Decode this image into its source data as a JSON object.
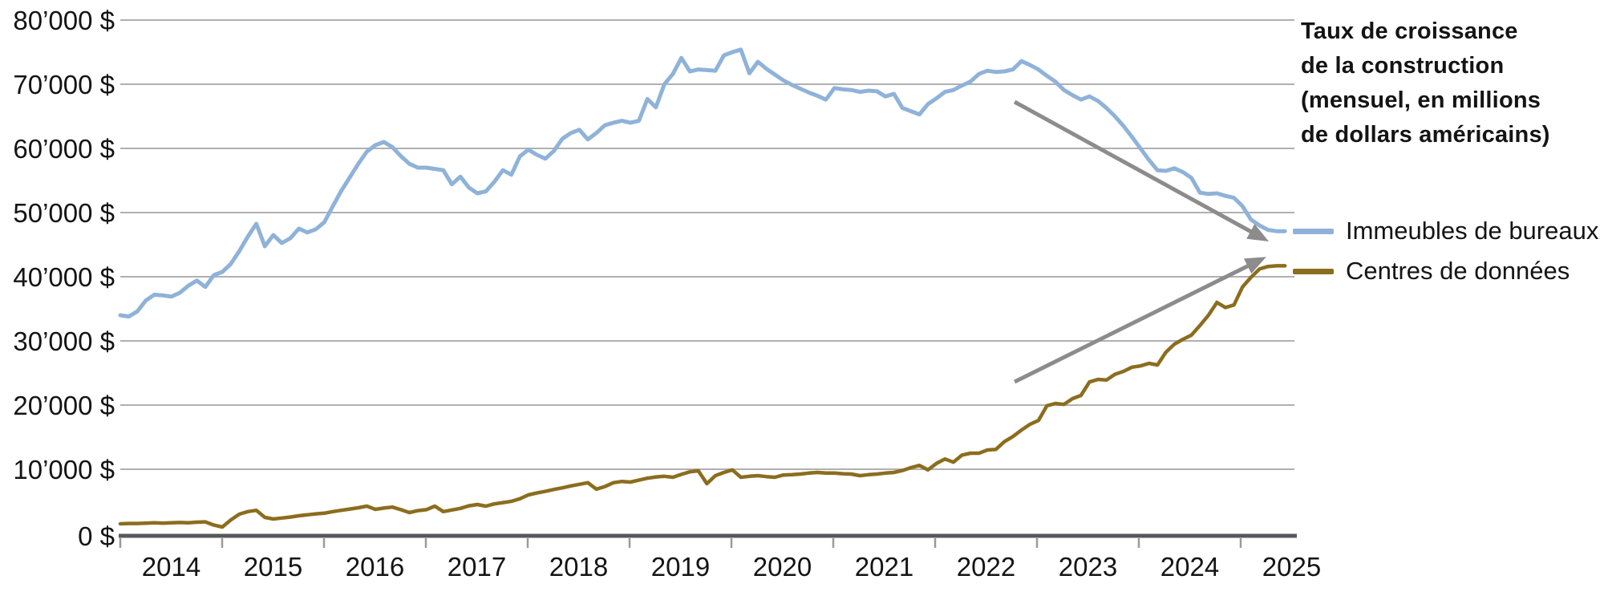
{
  "page": {
    "background": "#ffffff"
  },
  "title": {
    "text": "Taux de croissance\nde la construction\n(mensuel, en millions\nde dollars américains)"
  },
  "legend": {
    "position": "right",
    "items": [
      {
        "label": "Immeubles de bureaux",
        "color": "#8fb2d9"
      },
      {
        "label": "Centres de données",
        "color": "#8b6d1e"
      }
    ]
  },
  "y_axis": {
    "unit": "$",
    "min": 0,
    "max": 80000,
    "step": 10000,
    "tick_labels": [
      "0 $",
      "10’000 $",
      "20’000 $",
      "30’000 $",
      "40’000 $",
      "50’000 $",
      "60’000 $",
      "70’000 $",
      "80’000 $"
    ]
  },
  "x_axis": {
    "tick_labels": [
      "2014",
      "2015",
      "2016",
      "2017",
      "2018",
      "2019",
      "2020",
      "2021",
      "2022",
      "2023",
      "2024",
      "2025"
    ]
  },
  "colors": {
    "offices": "#8fb2d9",
    "data_centers": "#8b6d1e",
    "grid": "#b0b0b0",
    "axis": "#57585a",
    "tick": "#9b9b9b",
    "arrow": "#8c8c8c",
    "text": "#141414"
  },
  "chart_data": {
    "type": "line",
    "title": "Taux de croissance de la construction (mensuel, en millions de dollars américains)",
    "x_start": "2014-01",
    "x_end": "2025-06",
    "x_frequency": "monthly",
    "ylim": [
      0,
      80000
    ],
    "y_gridlines": [
      10000,
      20000,
      30000,
      40000,
      50000,
      60000,
      70000,
      80000
    ],
    "grid": true,
    "legend_position": "right",
    "categories_years": [
      2014,
      2015,
      2016,
      2017,
      2018,
      2019,
      2020,
      2021,
      2022,
      2023,
      2024,
      2025
    ],
    "series": [
      {
        "name": "Immeubles de bureaux",
        "color": "#8fb2d9",
        "values": [
          34000,
          33800,
          34600,
          36300,
          37200,
          37100,
          36900,
          37500,
          38600,
          39400,
          38400,
          40250,
          40750,
          42000,
          44000,
          46250,
          48250,
          44750,
          46500,
          45250,
          46000,
          47500,
          46900,
          47400,
          48500,
          51000,
          53400,
          55500,
          57600,
          59500,
          60500,
          61000,
          60200,
          58800,
          57600,
          57000,
          57000,
          56800,
          56600,
          54400,
          55600,
          53900,
          53000,
          53300,
          54800,
          56600,
          55900,
          58750,
          59800,
          59000,
          58400,
          59600,
          61500,
          62400,
          62900,
          61400,
          62400,
          63600,
          64000,
          64300,
          64000,
          64300,
          67700,
          66400,
          70000,
          71600,
          74100,
          72000,
          72300,
          72200,
          72100,
          74500,
          75000,
          75400,
          71700,
          73500,
          72400,
          71500,
          70600,
          69900,
          69300,
          68700,
          68200,
          67600,
          69400,
          69200,
          69100,
          68800,
          69000,
          68900,
          68100,
          68500,
          66300,
          65800,
          65300,
          66900,
          67800,
          68800,
          69100,
          69800,
          70400,
          71600,
          72100,
          71900,
          72000,
          72300,
          73600,
          73000,
          72300,
          71300,
          70400,
          69100,
          68300,
          67600,
          68100,
          67400,
          66300,
          65000,
          63500,
          61800,
          60000,
          58200,
          56600,
          56500,
          56900,
          56300,
          55400,
          53100,
          52900,
          53000,
          52600,
          52300,
          51000,
          48900,
          48000,
          47300,
          47100,
          47100
        ]
      },
      {
        "name": "Centres de données",
        "color": "#8b6d1e",
        "values": [
          1500,
          1550,
          1550,
          1600,
          1650,
          1600,
          1650,
          1700,
          1650,
          1750,
          1800,
          1300,
          1000,
          2100,
          3000,
          3400,
          3600,
          2500,
          2250,
          2400,
          2550,
          2750,
          2900,
          3050,
          3150,
          3400,
          3600,
          3800,
          4000,
          4250,
          3750,
          3950,
          4100,
          3700,
          3250,
          3550,
          3700,
          4250,
          3400,
          3650,
          3900,
          4300,
          4500,
          4250,
          4600,
          4800,
          5000,
          5400,
          6000,
          6300,
          6550,
          6850,
          7100,
          7400,
          7650,
          7900,
          6900,
          7300,
          7900,
          8100,
          8000,
          8300,
          8600,
          8800,
          8900,
          8750,
          9200,
          9600,
          9750,
          7750,
          9000,
          9500,
          9900,
          8750,
          8900,
          9000,
          8850,
          8750,
          9100,
          9150,
          9250,
          9400,
          9500,
          9400,
          9400,
          9300,
          9250,
          9000,
          9150,
          9250,
          9400,
          9500,
          9800,
          10250,
          10600,
          9900,
          10900,
          11600,
          11100,
          12200,
          12500,
          12500,
          13000,
          13100,
          14300,
          15100,
          16100,
          17000,
          17600,
          19900,
          20250,
          20100,
          21000,
          21500,
          23600,
          24000,
          23900,
          24800,
          25250,
          25900,
          26100,
          26500,
          26250,
          28250,
          29500,
          30250,
          30900,
          32400,
          34000,
          36000,
          35200,
          35600,
          38400,
          39900,
          41200,
          41600,
          41700,
          41700
        ]
      }
    ],
    "annotations": {
      "color": "#8c8c8c",
      "arrows": [
        {
          "from": [
            105.2,
            67250
          ],
          "to": [
            135.1,
            45500
          ]
        },
        {
          "from": [
            105.2,
            23625
          ],
          "to": [
            134.8,
            43100
          ]
        }
      ]
    }
  }
}
